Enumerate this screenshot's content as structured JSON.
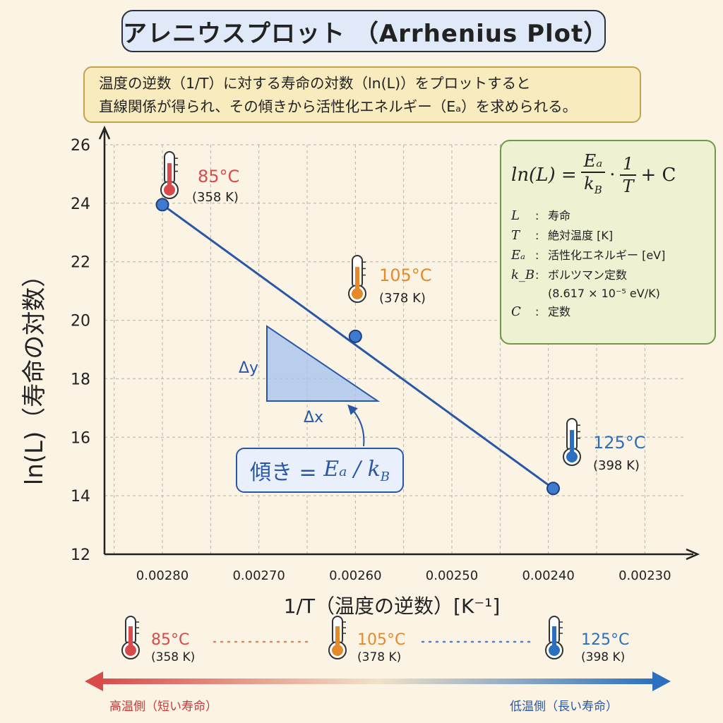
{
  "title": "アレニウスプロット （Arrhenius Plot）",
  "description": {
    "line1": "温度の逆数（1/T）に対する寿命の対数（ln(L)）をプロットすると",
    "line2": "直線関係が得られ、その傾きから活性化エネルギー（Eₐ）を求められる。"
  },
  "formula": {
    "lhs": "ln(L) =",
    "num1": "Eₐ",
    "den1_main": "k",
    "den1_sub": "B",
    "dot": "·",
    "num2": "1",
    "den2": "T",
    "plus": "+ C",
    "defs": [
      {
        "sym": "L",
        "desc": "寿命"
      },
      {
        "sym": "T",
        "desc": "絶対温度 [K]"
      },
      {
        "sym": "Eₐ",
        "desc": "活性化エネルギー [eV]"
      },
      {
        "sym": "k_B",
        "desc": "ボルツマン定数"
      },
      {
        "sym": "C",
        "desc": "定数"
      }
    ],
    "kb_value": "(8.617 × 10⁻⁵ eV/K)"
  },
  "slope_label": {
    "prefix": "傾き = ",
    "expr": "Eₐ / k",
    "sub": "B"
  },
  "triangle": {
    "dy": "Δy",
    "dx": "Δx"
  },
  "chart_data": {
    "type": "scatter",
    "x_label": "1/T（温度の逆数）[K⁻¹]",
    "y_label": "ln(L)（寿命の対数）",
    "x_range": [
      0.00286,
      0.00226
    ],
    "x_reversed": true,
    "y_range": [
      12,
      26
    ],
    "x_ticks": [
      "0.00280",
      "0.00270",
      "0.00260",
      "0.00250",
      "0.00240",
      "0.00230"
    ],
    "y_ticks": [
      "12",
      "14",
      "16",
      "18",
      "20",
      "22",
      "24",
      "26"
    ],
    "grid": true,
    "points": [
      {
        "x": 0.0028,
        "y": 23.95,
        "temp": "85°C",
        "kelvin": "(358 K)",
        "color": "#d94a4a"
      },
      {
        "x": 0.0026,
        "y": 19.45,
        "temp": "105°C",
        "kelvin": "(378 K)",
        "color": "#e58a2a"
      },
      {
        "x": 0.002395,
        "y": 14.25,
        "temp": "125°C",
        "kelvin": "(398 K)",
        "color": "#2a6fc0"
      }
    ],
    "line_color": "#2a57a5"
  },
  "bottom": {
    "hot_label": "高温側（短い寿命）",
    "cold_label": "低温側（長い寿命）"
  }
}
